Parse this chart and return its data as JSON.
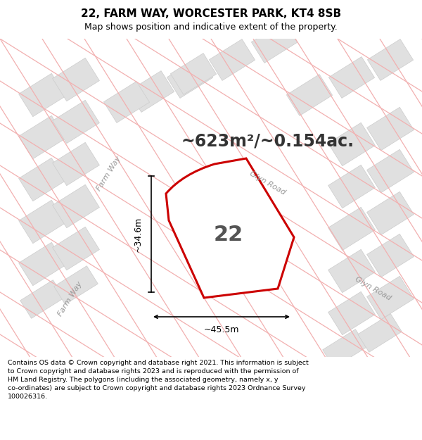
{
  "title": "22, FARM WAY, WORCESTER PARK, KT4 8SB",
  "subtitle": "Map shows position and indicative extent of the property.",
  "area_text": "~623m²/~0.154ac.",
  "house_number": "22",
  "width_label": "~45.5m",
  "height_label": "~34.6m",
  "road_label_glyn1": "Glyn Road",
  "road_label_glyn2": "Glyn Road",
  "road_label_farm1": "Farm Way",
  "road_label_farm2": "Farm Way",
  "footer_line1": "Contains OS data © Crown copyright and database right 2021. This information is subject",
  "footer_line2": "to Crown copyright and database rights 2023 and is reproduced with the permission of",
  "footer_line3": "HM Land Registry. The polygons (including the associated geometry, namely x, y",
  "footer_line4": "co-ordinates) are subject to Crown copyright and database rights 2023 Ordnance Survey",
  "footer_line5": "100026316.",
  "bg_color": "#f7f7f7",
  "property_fill": "#ffffff",
  "property_edge": "#cc0000",
  "property_lw": 2.2,
  "grid_line_color": "#f2b0b0",
  "building_color": "#e0e0e0",
  "building_edge": "#cccccc",
  "road_fill": "#f0f0f0",
  "arrow_color": "#000000",
  "text_color": "#333333",
  "road_text_color": "#999999",
  "title_fontsize": 11,
  "subtitle_fontsize": 9,
  "area_fontsize": 17,
  "number_fontsize": 22,
  "dim_fontsize": 9,
  "road_fontsize": 8,
  "footer_fontsize": 6.8
}
